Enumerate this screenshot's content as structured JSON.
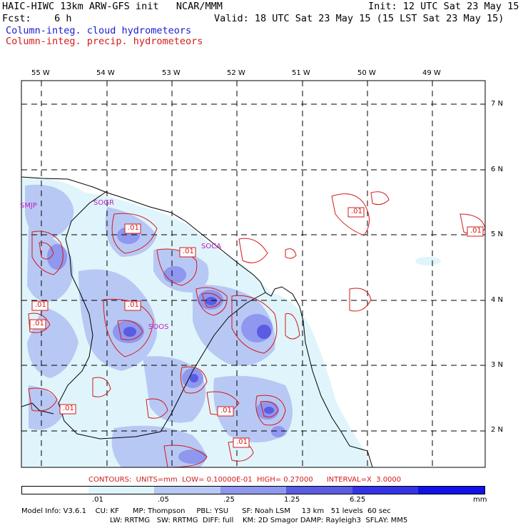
{
  "header": {
    "line1_left": "HAIC-HIWC 13km ARW-GFS init   NCAR/MMM",
    "line1_right": "Init: 12 UTC Sat 23 May 15",
    "line2_left": "Fcst:    6 h",
    "line2_right": "Valid: 18 UTC Sat 23 May 15 (15 LST Sat 23 May 15)",
    "line3": "Column-integ. cloud hydrometeors",
    "line4": "Column-integ. precip. hydrometeors"
  },
  "axes": {
    "lon_labels": [
      "55 W",
      "54 W",
      "53 W",
      "52 W",
      "51 W",
      "50 W",
      "49 W"
    ],
    "lat_labels": [
      "7 N",
      "6 N",
      "5 N",
      "4 N",
      "3 N",
      "2 N"
    ]
  },
  "stations": [
    "SMJP",
    "SOGR",
    "SOCA",
    "SOOS"
  ],
  "contour_labels": [
    ".01",
    ".01",
    ".01",
    ".01",
    ".01",
    ".01",
    ".01",
    ".01",
    ".01",
    ".01"
  ],
  "contour_info": "CONTOURS:  UNITS=mm  LOW= 0.10000E-01  HIGH= 0.27000      INTERVAL=X  3.0000",
  "colorbar": {
    "tick_labels": [
      ".01",
      ".05",
      ".25",
      "1.25",
      "6.25"
    ],
    "units": "mm",
    "colors": [
      "#ffffff",
      "#dff5fb",
      "#b8c8f4",
      "#8f97ee",
      "#5a5ce4",
      "#3434e6",
      "#1212e8"
    ]
  },
  "footer": {
    "line1": "Model Info: V3.6.1    CU: KF      MP: Thompson     PBL: YSU      SF: Noah LSM     13 km   51 levels  60 sec",
    "line2": "LW: RRTMG   SW: RRTMG  DIFF: full    KM: 2D Smagor DAMP: Rayleigh3  SFLAY: MM5"
  }
}
